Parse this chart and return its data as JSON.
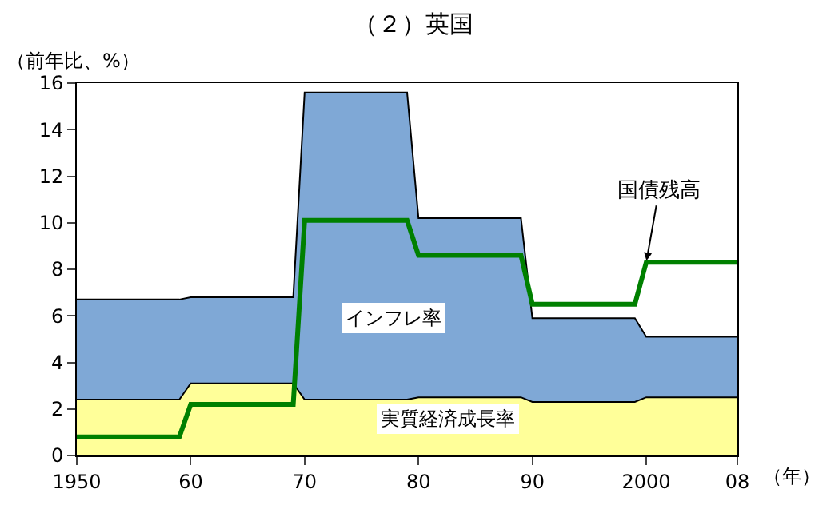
{
  "chart_data": {
    "type": "area",
    "stacked": true,
    "title": "（２）英国",
    "ylabel": "（前年比、%）",
    "xlabel": "（年）",
    "x": [
      1950,
      1959,
      1960,
      1969,
      1970,
      1979,
      1980,
      1989,
      1990,
      1999,
      2000,
      2008
    ],
    "series": [
      {
        "name": "実質経済成長率",
        "color": "#ffff99",
        "values": [
          2.4,
          2.4,
          3.1,
          3.1,
          2.4,
          2.4,
          2.5,
          2.5,
          2.3,
          2.3,
          2.5,
          2.5
        ]
      },
      {
        "name": "インフレ率",
        "color": "#7fa8d6",
        "values": [
          4.3,
          4.3,
          3.7,
          3.7,
          13.2,
          13.2,
          7.7,
          7.7,
          3.6,
          3.6,
          2.6,
          2.6
        ]
      },
      {
        "type": "line",
        "color": "#008000",
        "values": [
          0.8,
          0.8,
          2.2,
          2.2,
          10.1,
          10.1,
          8.6,
          8.6,
          6.5,
          6.5,
          8.3,
          8.3
        ]
      }
    ],
    "xlim": [
      1950,
      2008
    ],
    "xticks": [
      1950,
      {
        "value": 1960,
        "label": "60"
      },
      {
        "value": 1970,
        "label": "70"
      },
      {
        "value": 1980,
        "label": "80"
      },
      {
        "value": 1990,
        "label": "90"
      },
      2000,
      {
        "value": 2008,
        "label": "08"
      }
    ],
    "ylim": [
      0,
      16
    ],
    "yticks": [
      0,
      2,
      4,
      6,
      8,
      10,
      12,
      14,
      16
    ],
    "annotations": [
      {
        "text": "国債残高",
        "x": 2000,
        "y": 8.3
      }
    ],
    "legend": false
  }
}
